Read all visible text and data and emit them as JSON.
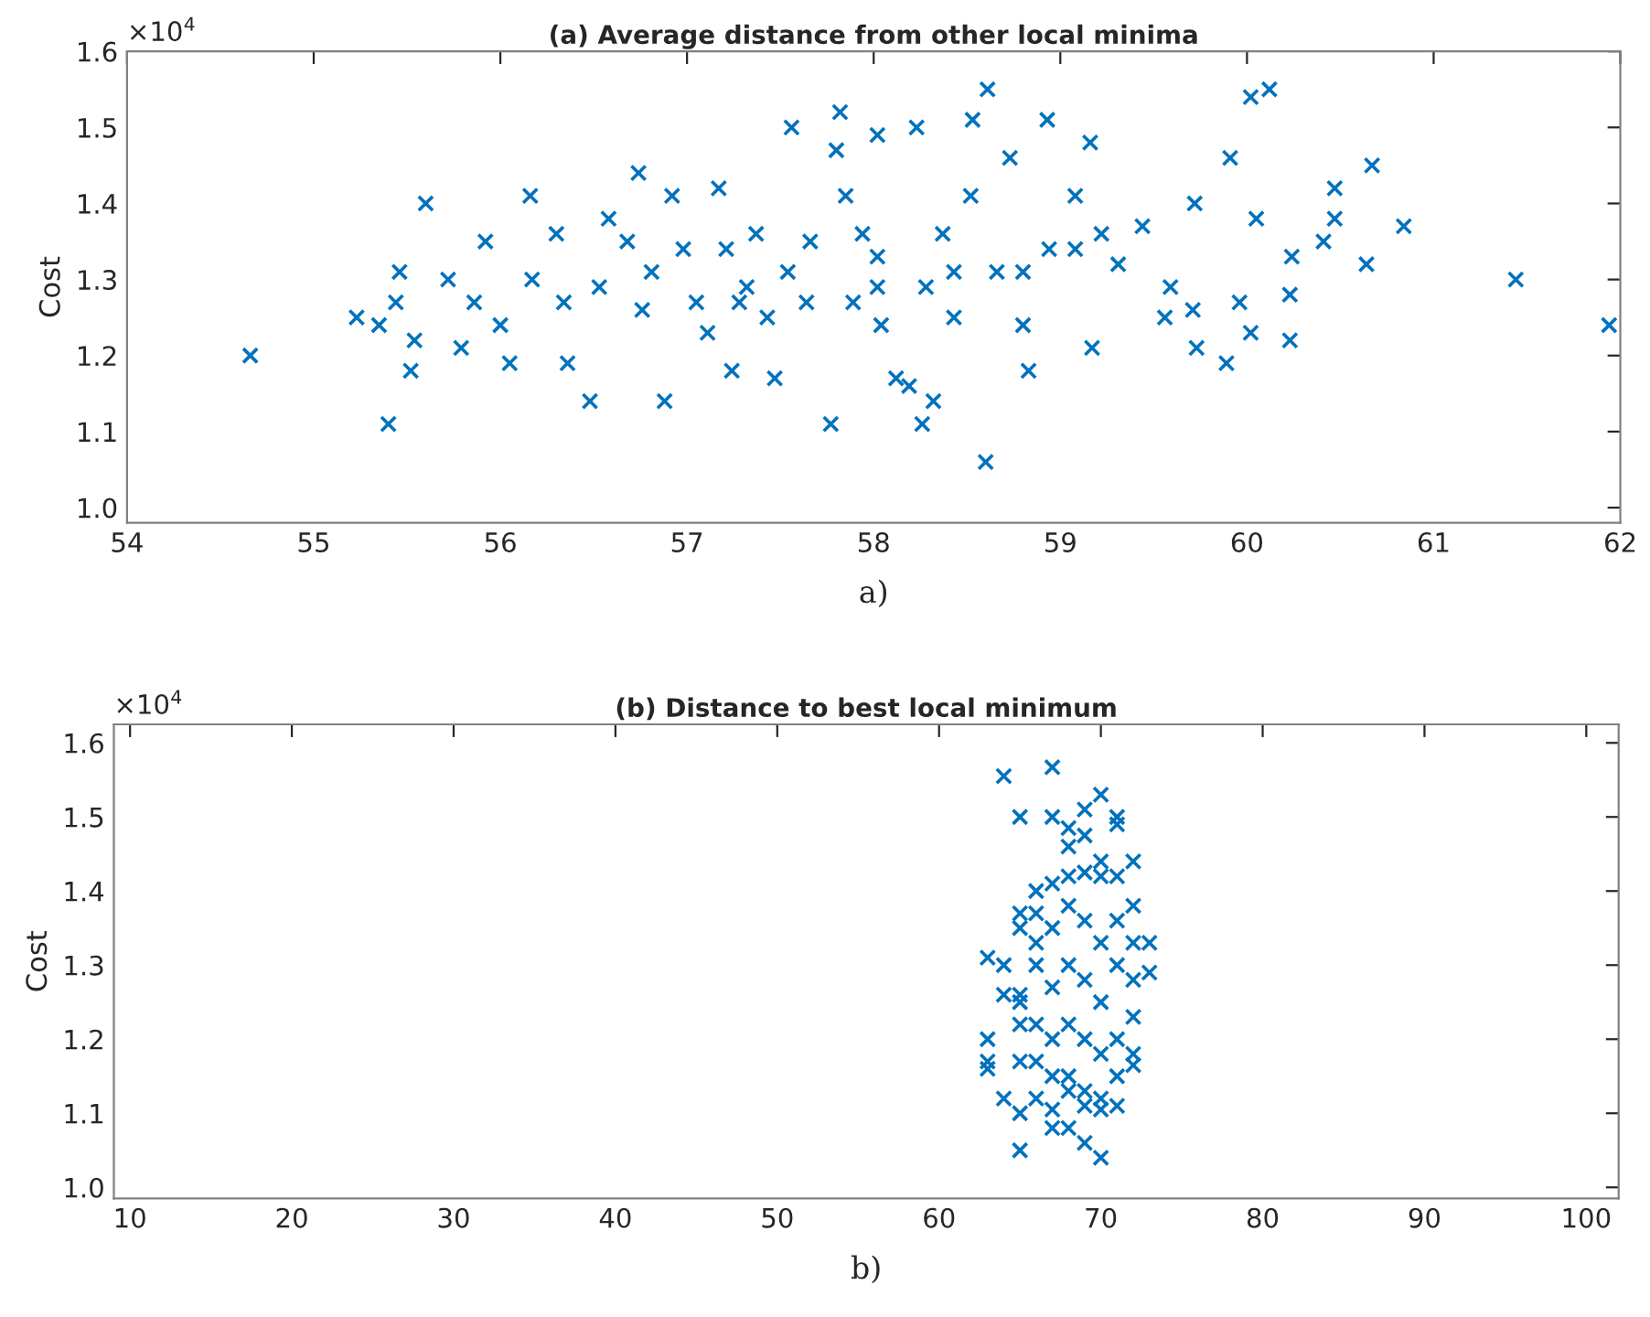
{
  "chart_data": [
    {
      "type": "scatter",
      "title": "(a) Average distance from other local minima",
      "ylabel": "Cost",
      "annotations": [
        "×10$^{4}$",
        "a)"
      ],
      "marker": "cross",
      "grid": false,
      "xlim": [
        54,
        62
      ],
      "xticks": [
        54,
        55,
        56,
        57,
        58,
        59,
        60,
        61,
        62
      ],
      "ylim": [
        0.98,
        1.6
      ],
      "yticks": [
        {
          "value": 1.0,
          "label": "1.0"
        },
        1.1,
        1.2,
        1.3,
        1.4,
        1.5,
        1.6
      ],
      "series": [
        {
          "color": "#0072bd",
          "x": [
            54.66,
            55.23,
            55.35,
            55.4,
            55.46,
            55.44,
            55.52,
            55.6,
            55.54,
            55.72,
            55.79,
            55.92,
            56.0,
            56.05,
            56.16,
            56.17,
            56.3,
            56.34,
            56.36,
            56.48,
            56.58,
            56.68,
            56.74,
            56.76,
            56.88,
            56.92,
            56.98,
            57.05,
            57.11,
            57.17,
            57.21,
            57.24,
            57.32,
            57.37,
            57.43,
            57.47,
            57.54,
            57.56,
            57.64,
            57.77,
            57.8,
            57.82,
            57.85,
            57.89,
            58.02,
            58.02,
            58.04,
            58.12,
            58.19,
            58.23,
            58.26,
            58.32,
            58.28,
            58.37,
            58.43,
            58.52,
            58.53,
            58.6,
            58.61,
            58.66,
            58.73,
            58.8,
            58.83,
            58.93,
            58.94,
            59.08,
            59.16,
            59.17,
            59.22,
            59.31,
            59.44,
            59.56,
            59.59,
            59.72,
            59.71,
            59.73,
            59.89,
            59.91,
            59.96,
            60.02,
            60.02,
            60.12,
            60.05,
            60.23,
            60.23,
            60.24,
            60.41,
            60.47,
            60.47,
            60.64,
            60.67,
            60.84,
            61.44,
            61.94,
            57.94,
            57.66,
            56.81,
            56.53,
            57.28,
            58.02,
            58.8,
            59.08,
            58.43,
            55.86
          ],
          "values": [
            1.2,
            1.25,
            1.24,
            1.11,
            1.31,
            1.27,
            1.18,
            1.4,
            1.22,
            1.3,
            1.21,
            1.35,
            1.24,
            1.19,
            1.41,
            1.3,
            1.36,
            1.27,
            1.19,
            1.14,
            1.38,
            1.35,
            1.44,
            1.26,
            1.14,
            1.41,
            1.34,
            1.27,
            1.23,
            1.42,
            1.34,
            1.18,
            1.29,
            1.36,
            1.25,
            1.17,
            1.31,
            1.5,
            1.27,
            1.11,
            1.47,
            1.52,
            1.41,
            1.27,
            1.49,
            1.33,
            1.24,
            1.17,
            1.16,
            1.5,
            1.11,
            1.14,
            1.29,
            1.36,
            1.25,
            1.41,
            1.51,
            1.06,
            1.55,
            1.31,
            1.46,
            1.24,
            1.18,
            1.51,
            1.34,
            1.41,
            1.48,
            1.21,
            1.36,
            1.32,
            1.37,
            1.25,
            1.29,
            1.4,
            1.26,
            1.21,
            1.19,
            1.46,
            1.27,
            1.23,
            1.54,
            1.55,
            1.38,
            1.22,
            1.28,
            1.33,
            1.35,
            1.42,
            1.38,
            1.32,
            1.45,
            1.37,
            1.3,
            1.24,
            1.36,
            1.35,
            1.31,
            1.29,
            1.27,
            1.29,
            1.31,
            1.34,
            1.31,
            1.27
          ]
        }
      ]
    },
    {
      "type": "scatter",
      "title": "(b) Distance to best local minimum",
      "ylabel": "Cost",
      "annotations": [
        "×10$^{4}$",
        "b)"
      ],
      "marker": "cross",
      "grid": false,
      "xlim": [
        9,
        102
      ],
      "xticks": [
        10,
        20,
        30,
        40,
        50,
        60,
        70,
        80,
        90,
        100
      ],
      "ylim": [
        0.985,
        1.625
      ],
      "yticks": [
        {
          "value": 1.0,
          "label": "1.0"
        },
        1.1,
        1.2,
        1.3,
        1.4,
        1.5,
        1.6
      ],
      "series": [
        {
          "color": "#0072bd",
          "x": [
            63,
            63,
            63,
            63,
            64,
            64,
            64,
            64,
            65,
            65,
            65,
            65,
            65,
            65,
            65,
            65,
            65,
            66,
            66,
            66,
            66,
            66,
            66,
            66,
            67,
            67,
            67,
            67,
            67,
            67,
            67,
            67,
            67,
            68,
            68,
            68,
            68,
            68,
            68,
            68,
            68,
            68,
            69,
            69,
            69,
            69,
            69,
            69,
            69,
            69,
            69,
            70,
            70,
            70,
            70,
            70,
            70,
            70,
            70,
            70,
            71,
            71,
            71,
            71,
            71,
            71,
            71,
            71,
            72,
            72,
            72,
            72,
            72,
            72,
            72,
            73,
            73
          ],
          "values": [
            1.2,
            1.17,
            1.16,
            1.31,
            1.3,
            1.26,
            1.12,
            1.555,
            1.5,
            1.37,
            1.35,
            1.26,
            1.25,
            1.22,
            1.17,
            1.1,
            1.05,
            1.4,
            1.37,
            1.33,
            1.3,
            1.22,
            1.17,
            1.12,
            1.567,
            1.5,
            1.41,
            1.35,
            1.27,
            1.2,
            1.15,
            1.105,
            1.08,
            1.485,
            1.46,
            1.42,
            1.38,
            1.3,
            1.22,
            1.15,
            1.13,
            1.08,
            1.51,
            1.475,
            1.425,
            1.36,
            1.28,
            1.2,
            1.13,
            1.11,
            1.06,
            1.53,
            1.44,
            1.42,
            1.33,
            1.25,
            1.18,
            1.12,
            1.105,
            1.04,
            1.5,
            1.49,
            1.42,
            1.36,
            1.3,
            1.2,
            1.15,
            1.11,
            1.44,
            1.38,
            1.33,
            1.23,
            1.18,
            1.165,
            1.28,
            1.33,
            1.29
          ]
        }
      ]
    }
  ]
}
